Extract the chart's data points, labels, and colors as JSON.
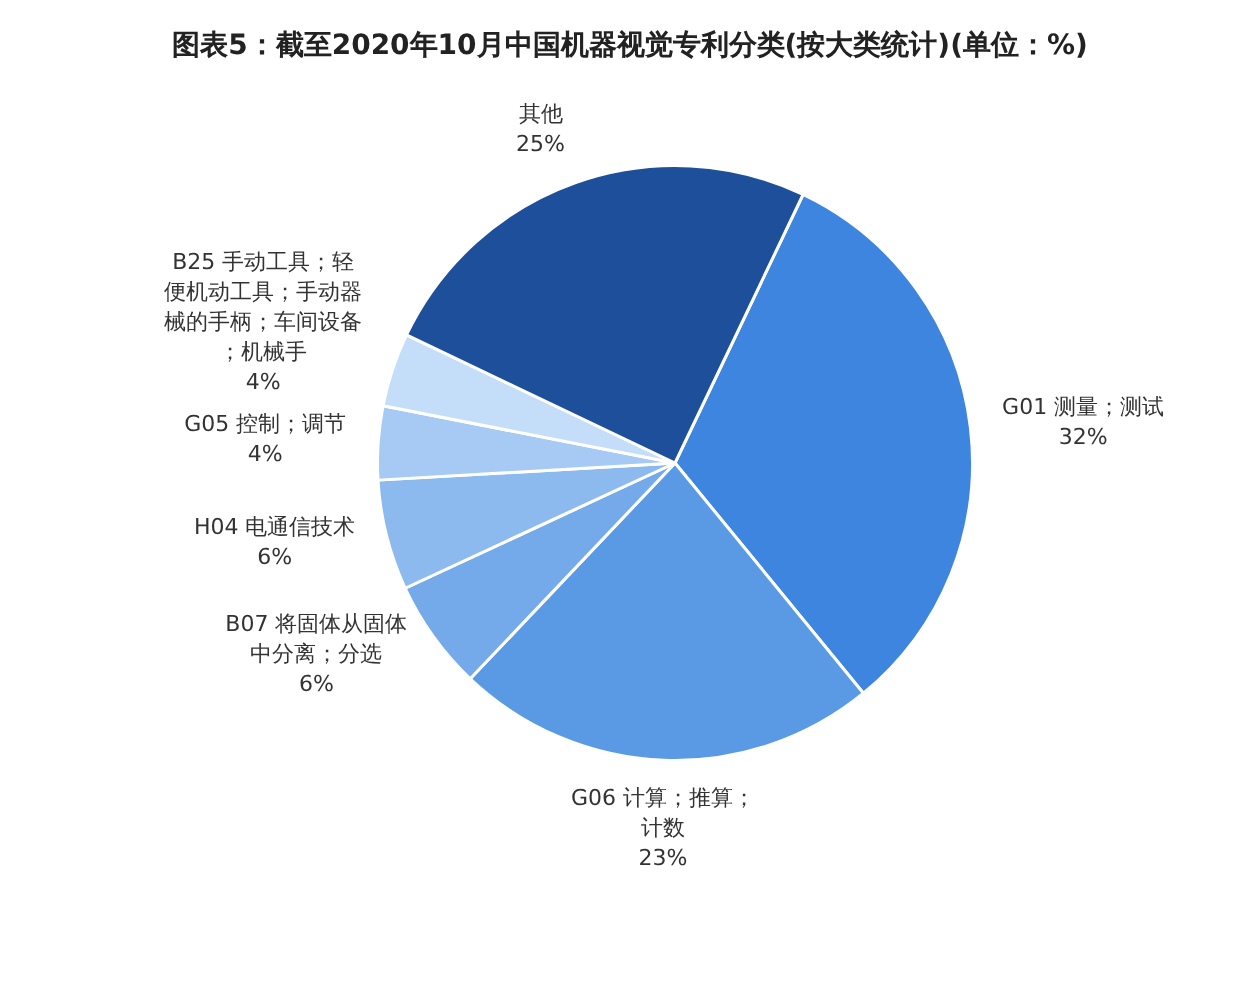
{
  "chart_data": {
    "type": "pie",
    "title": "图表5：截至2020年10月中国机器视觉专利分类(按大类统计)(单位：%)",
    "categories": [
      "G01 测量；测试",
      "G06 计算；推算；计数",
      "B07 将固体从固体中分离；分选",
      "H04 电通信技术",
      "G05 控制；调节",
      "B25 手动工具；轻便机动工具；手动器械的手柄；车间设备；机械手",
      "其他"
    ],
    "values": [
      32,
      23,
      6,
      6,
      4,
      4,
      25
    ],
    "value_labels": [
      "32%",
      "23%",
      "6%",
      "6%",
      "4%",
      "4%",
      "25%"
    ],
    "colors": [
      "#3d85df",
      "#5a9ae5",
      "#75aaea",
      "#8cb9ee",
      "#a6caf3",
      "#c4ddf8",
      "#1e4f9b"
    ],
    "legend": false
  }
}
